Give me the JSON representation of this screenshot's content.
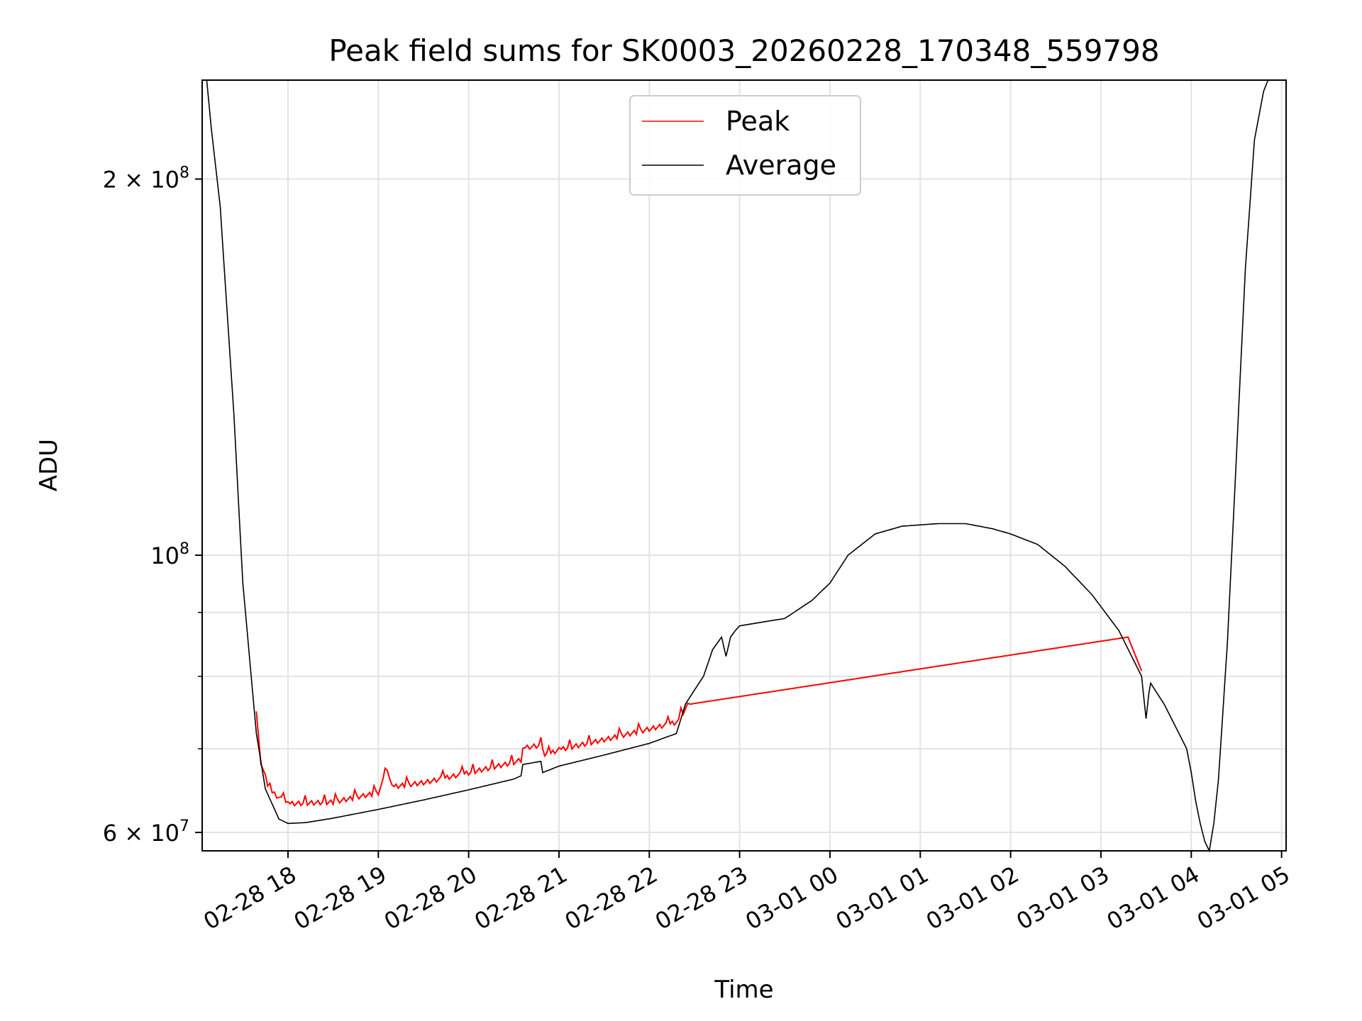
{
  "chart_data": {
    "type": "line",
    "title": "Peak field sums for SK0003_20260228_170348_559798",
    "xlabel": "Time",
    "ylabel": "ADU",
    "yscale": "log",
    "ylim": [
      58000000,
      240000000
    ],
    "xlim_hours": [
      -0.95,
      11.05
    ],
    "x_ticks": [
      {
        "hour": 0,
        "label": "02-28 18"
      },
      {
        "hour": 1,
        "label": "02-28 19"
      },
      {
        "hour": 2,
        "label": "02-28 20"
      },
      {
        "hour": 3,
        "label": "02-28 21"
      },
      {
        "hour": 4,
        "label": "02-28 22"
      },
      {
        "hour": 5,
        "label": "02-28 23"
      },
      {
        "hour": 6,
        "label": "03-01 00"
      },
      {
        "hour": 7,
        "label": "03-01 01"
      },
      {
        "hour": 8,
        "label": "03-01 02"
      },
      {
        "hour": 9,
        "label": "03-01 03"
      },
      {
        "hour": 10,
        "label": "03-01 04"
      },
      {
        "hour": 11,
        "label": "03-01 05"
      }
    ],
    "y_major_ticks": [
      {
        "value": 200000000,
        "base": "2 × 10",
        "exp": "8"
      },
      {
        "value": 100000000,
        "base": "10",
        "exp": "8"
      },
      {
        "value": 60000000,
        "base": "6 × 10",
        "exp": "7"
      }
    ],
    "y_minor_ticks": [
      70000000,
      80000000,
      90000000
    ],
    "grid": true,
    "legend": {
      "placement": "upper center",
      "entries": [
        "Peak",
        "Average"
      ]
    },
    "series": [
      {
        "name": "Average",
        "color": "#000000",
        "x_hours": [
          -0.9,
          -0.85,
          -0.75,
          -0.6,
          -0.5,
          -0.35,
          -0.25,
          -0.1,
          0,
          0.2,
          0.5,
          1.0,
          1.5,
          2.0,
          2.5,
          2.58,
          2.6,
          2.8,
          2.82,
          3.0,
          3.5,
          4.0,
          4.3,
          4.4,
          4.5,
          4.6,
          4.7,
          4.8,
          4.85,
          4.9,
          4.95,
          5.0,
          5.5,
          5.8,
          6.0,
          6.2,
          6.5,
          6.8,
          7.2,
          7.5,
          7.8,
          8.0,
          8.3,
          8.6,
          8.9,
          9.2,
          9.45,
          9.5,
          9.53,
          9.55,
          9.7,
          9.95,
          10.0,
          10.05,
          10.1,
          10.15,
          10.2,
          10.25,
          10.3,
          10.4,
          10.5,
          10.6,
          10.7,
          10.8,
          10.85,
          10.95
        ],
        "y": [
          240000000,
          220000000,
          190000000,
          130000000,
          95000000,
          72000000,
          65000000,
          61500000,
          61000000,
          61100000,
          61600000,
          62600000,
          63700000,
          64900000,
          66200000,
          66600000,
          68000000,
          68400000,
          67000000,
          67800000,
          69200000,
          70700000,
          72000000,
          76000000,
          78000000,
          80000000,
          84000000,
          86000000,
          83000000,
          86000000,
          87000000,
          87800000,
          89000000,
          92000000,
          95000000,
          100000000,
          104000000,
          105500000,
          106000000,
          106000000,
          105000000,
          104000000,
          102000000,
          98000000,
          93000000,
          87000000,
          80000000,
          74000000,
          77500000,
          79000000,
          76000000,
          70000000,
          67000000,
          63500000,
          61000000,
          59000000,
          58000000,
          61000000,
          66000000,
          85000000,
          120000000,
          170000000,
          215000000,
          235000000,
          240000000,
          240000000
        ]
      },
      {
        "name": "Peak",
        "color": "#ff0000",
        "x_hours": [
          -0.35,
          -0.3,
          -0.2,
          0,
          0.5,
          1.0,
          1.1,
          1.15,
          1.5,
          2.0,
          2.5,
          2.58,
          2.6,
          2.8,
          2.82,
          3.0,
          3.5,
          4.0,
          4.3,
          4.45,
          9.3,
          9.45
        ],
        "y": [
          75000000,
          68000000,
          64500000,
          63000000,
          63200000,
          64300000,
          67000000,
          65000000,
          65500000,
          66700000,
          68000000,
          68300000,
          69800000,
          70200000,
          68700000,
          69600000,
          70900000,
          72300000,
          73200000,
          76000000,
          86000000,
          80800000
        ]
      }
    ]
  }
}
